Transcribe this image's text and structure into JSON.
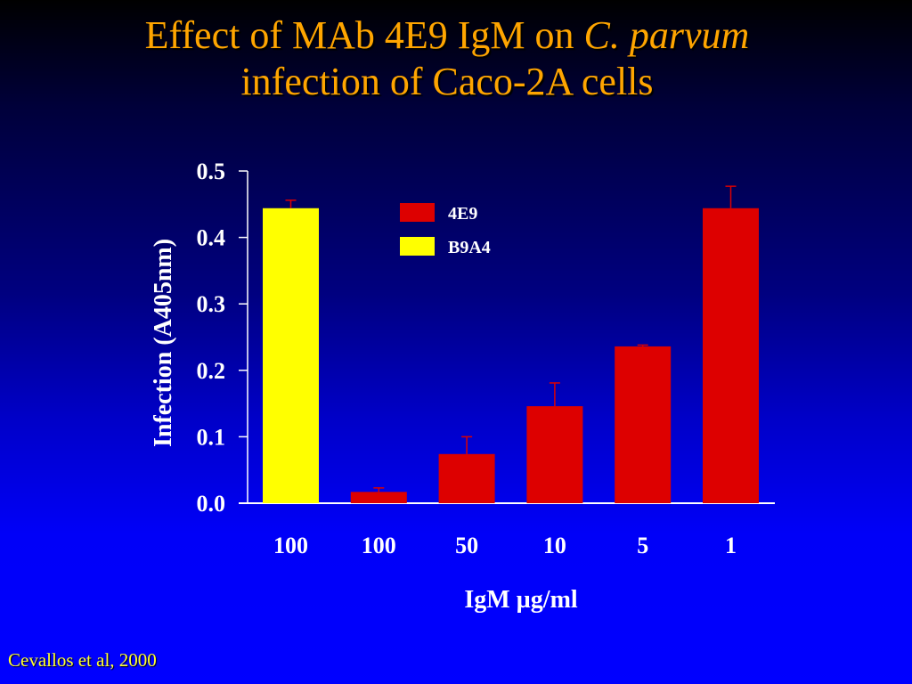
{
  "slide": {
    "title_line1_prefix": "Effect of MAb 4E9 IgM on ",
    "title_line1_italic": "C. parvum",
    "title_line2": "infection of Caco-2A cells",
    "citation": "Cevallos et al, 2000"
  },
  "colors": {
    "title": "#ffa500",
    "citation": "#ffff33",
    "series_4E9": "#dd0000",
    "series_B9A4": "#ffff00",
    "error_bar": "#dd0000",
    "axis": "#ffffff"
  },
  "chart_data": {
    "type": "bar",
    "title": "Effect of MAb 4E9 IgM on C. parvum infection of Caco-2A cells",
    "xlabel": "IgM µg/ml",
    "ylabel": "Infection (A405nm)",
    "ylim": [
      0.0,
      0.5
    ],
    "yticks": [
      "0.0",
      "0.1",
      "0.2",
      "0.3",
      "0.4",
      "0.5"
    ],
    "categories": [
      "100",
      "100",
      "50",
      "10",
      "5",
      "1"
    ],
    "bars": [
      {
        "category": "100",
        "series": "B9A4",
        "value": 0.444,
        "error": 0.012
      },
      {
        "category": "100",
        "series": "4E9",
        "value": 0.017,
        "error": 0.006
      },
      {
        "category": "50",
        "series": "4E9",
        "value": 0.074,
        "error": 0.026
      },
      {
        "category": "10",
        "series": "4E9",
        "value": 0.146,
        "error": 0.035
      },
      {
        "category": "5",
        "series": "4E9",
        "value": 0.236,
        "error": 0.002
      },
      {
        "category": "1",
        "series": "4E9",
        "value": 0.444,
        "error": 0.033
      }
    ],
    "legend": {
      "placement": "top-center",
      "entries": [
        {
          "label": "4E9",
          "color": "#dd0000"
        },
        {
          "label": "B9A4",
          "color": "#ffff00"
        }
      ]
    },
    "grid": false
  }
}
